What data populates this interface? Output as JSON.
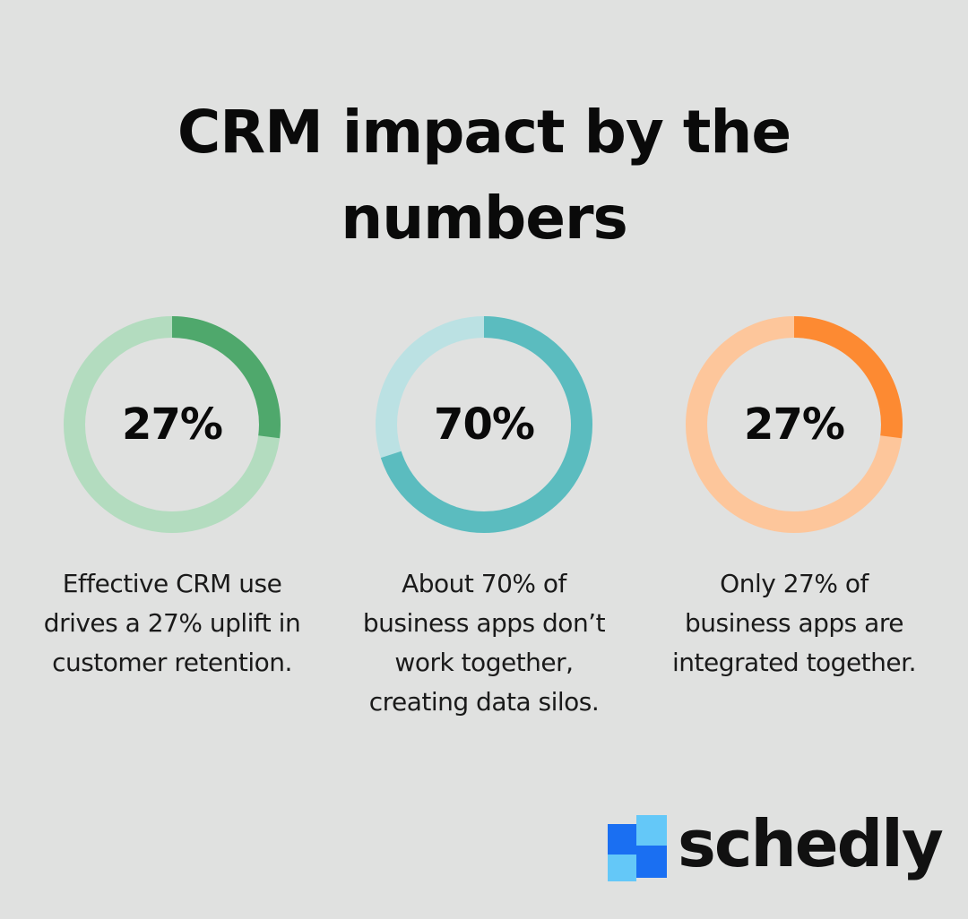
{
  "title_lines": [
    "CRM impact by the",
    "numbers"
  ],
  "chart_data": [
    {
      "type": "pie",
      "values": [
        27,
        73
      ],
      "value_label": "27%",
      "caption_lines": [
        "Effective CRM use",
        "drives a 27% uplift in",
        "customer retention."
      ],
      "color_highlight": "#4fa86c",
      "color_track": "#b3dcbf"
    },
    {
      "type": "pie",
      "values": [
        70,
        30
      ],
      "value_label": "70%",
      "caption_lines": [
        "About 70% of",
        "business apps don’t",
        "work together,",
        "creating data silos."
      ],
      "color_highlight": "#5bbcbf",
      "color_track": "#bbe1e3"
    },
    {
      "type": "pie",
      "values": [
        27,
        73
      ],
      "value_label": "27%",
      "caption_lines": [
        "Only 27% of",
        "business apps are",
        "integrated together."
      ],
      "color_highlight": "#fd8a32",
      "color_track": "#fdc69b"
    }
  ],
  "brand": {
    "name": "schedly",
    "mark_colors": [
      "#1a6ff2",
      "#64c8f8"
    ]
  }
}
